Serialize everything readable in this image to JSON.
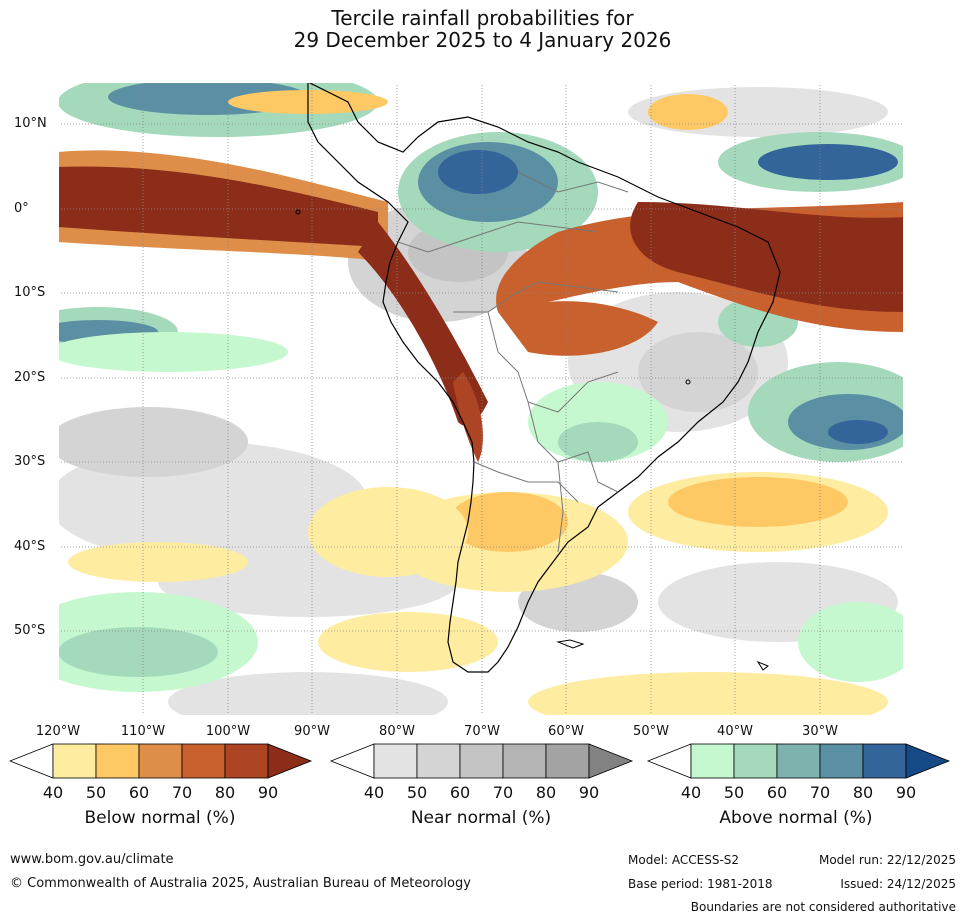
{
  "title": {
    "line1": "Tercile rainfall probabilities for",
    "line2": "29 December 2025 to 4 January 2026"
  },
  "latitude_labels": [
    "10°N",
    "0°",
    "10°S",
    "20°S",
    "30°S",
    "40°S",
    "50°S"
  ],
  "longitude_labels": [
    "120°W",
    "110°W",
    "100°W",
    "90°W",
    "80°W",
    "70°W",
    "60°W",
    "50°W",
    "40°W",
    "30°W"
  ],
  "legends": [
    {
      "title": "Below normal (%)",
      "ticks": [
        "40",
        "50",
        "60",
        "70",
        "80",
        "90"
      ],
      "colors": [
        "#ffffff",
        "#feeca0",
        "#fec965",
        "#df8e49",
        "#c9612f",
        "#ad4424",
        "#8b2d19"
      ]
    },
    {
      "title": "Near normal (%)",
      "ticks": [
        "40",
        "50",
        "60",
        "70",
        "80",
        "90"
      ],
      "colors": [
        "#ffffff",
        "#e3e3e3",
        "#d4d4d4",
        "#c4c4c4",
        "#b4b4b4",
        "#a3a3a3",
        "#828282"
      ]
    },
    {
      "title": "Above normal (%)",
      "ticks": [
        "40",
        "50",
        "60",
        "70",
        "80",
        "90"
      ],
      "colors": [
        "#ffffff",
        "#c5f8cf",
        "#a4d9bc",
        "#7db2ae",
        "#5b8fa3",
        "#33659a",
        "#154a86"
      ]
    }
  ],
  "footer": {
    "website": "www.bom.gov.au/climate",
    "copyright": "© Commonwealth of Australia 2025, Australian Bureau of Meteorology",
    "model": "Model: ACCESS-S2",
    "base_period": "Base period: 1981-2018",
    "model_run": "Model run: 22/12/2025",
    "issued": "Issued: 24/12/2025",
    "boundaries": "Boundaries are not considered authoritative"
  }
}
